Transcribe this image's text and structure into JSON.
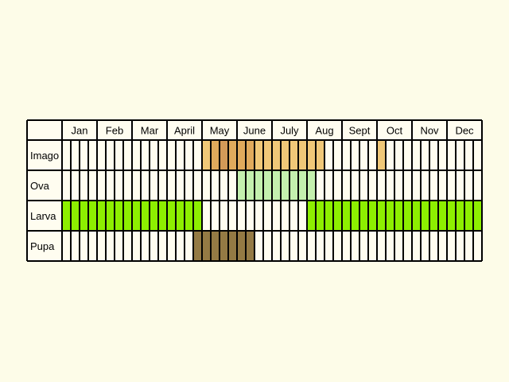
{
  "colors": {
    "background": "#fdfce8",
    "cell": "#fffdf0",
    "grid": "#000000",
    "imago_light": "#f0c878",
    "imago_mid": "#e0aa5c",
    "imago_dark": "#d39a58",
    "ova": "#c4f0ae",
    "larva": "#8def00",
    "pupa_edge": "#8a6a3a",
    "pupa": "#947a44"
  },
  "chart_data": {
    "type": "table",
    "months": [
      "Jan",
      "Feb",
      "Mar",
      "April",
      "May",
      "June",
      "July",
      "Aug",
      "Sept",
      "Oct",
      "Nov",
      "Dec"
    ],
    "subdivisions_per_month": 4,
    "rows": [
      {
        "name": "Imago",
        "bands": [
          {
            "start": 16,
            "end": 17,
            "color": "imago_light"
          },
          {
            "start": 17,
            "end": 18,
            "color": "imago_mid"
          },
          {
            "start": 18,
            "end": 19,
            "color": "imago_dark"
          },
          {
            "start": 19,
            "end": 20,
            "color": "imago_mid"
          },
          {
            "start": 20,
            "end": 21,
            "color": "imago_mid"
          },
          {
            "start": 21,
            "end": 22,
            "color": "imago_mid"
          },
          {
            "start": 22,
            "end": 23,
            "color": "imago_light"
          },
          {
            "start": 23,
            "end": 24,
            "color": "imago_light"
          },
          {
            "start": 24,
            "end": 25,
            "color": "imago_light"
          },
          {
            "start": 25,
            "end": 26,
            "color": "imago_light"
          },
          {
            "start": 26,
            "end": 27,
            "color": "imago_light"
          },
          {
            "start": 27,
            "end": 28,
            "color": "imago_light"
          },
          {
            "start": 28,
            "end": 29,
            "color": "imago_light"
          },
          {
            "start": 29,
            "end": 30,
            "color": "imago_light"
          },
          {
            "start": 36,
            "end": 37,
            "color": "imago_light"
          }
        ]
      },
      {
        "name": "Ova",
        "bands": [
          {
            "start": 20,
            "end": 29,
            "color": "ova"
          }
        ]
      },
      {
        "name": "Larva",
        "bands": [
          {
            "start": 0,
            "end": 16,
            "color": "larva"
          },
          {
            "start": 28,
            "end": 48,
            "color": "larva"
          }
        ]
      },
      {
        "name": "Pupa",
        "bands": [
          {
            "start": 15,
            "end": 22,
            "color": "pupa"
          }
        ]
      }
    ]
  }
}
